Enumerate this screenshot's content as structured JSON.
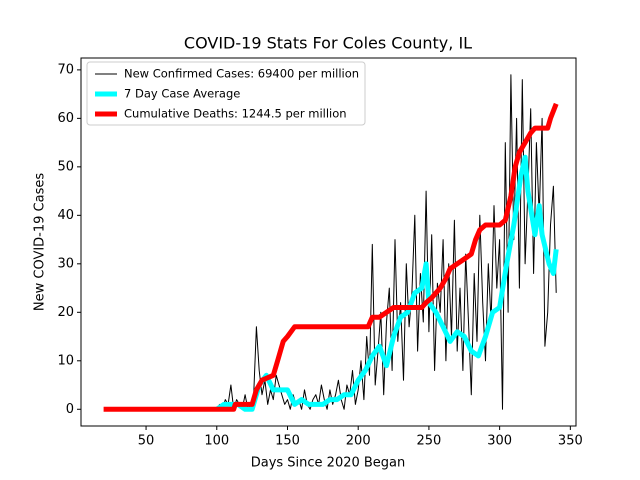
{
  "chart_data": {
    "type": "line",
    "title": "COVID-19 Stats For Coles County, IL",
    "x_label": "Days Since 2020 Began",
    "y_label": "New COVID-19 Cases",
    "xlim": [
      4,
      354
    ],
    "ylim": [
      -3.45,
      72.45
    ],
    "xticks": [
      50,
      100,
      150,
      200,
      250,
      300,
      350
    ],
    "yticks": [
      0,
      10,
      20,
      30,
      40,
      50,
      60,
      70
    ],
    "legend": "upper left",
    "series": [
      {
        "name": "New Confirmed Cases: 69400 per million",
        "color": "#000000",
        "width": 1,
        "x": [
          100,
          102,
          104,
          106,
          108,
          110,
          112,
          114,
          116,
          118,
          120,
          122,
          124,
          126,
          128,
          130,
          132,
          134,
          136,
          138,
          140,
          142,
          144,
          146,
          148,
          150,
          152,
          154,
          156,
          158,
          160,
          162,
          164,
          166,
          168,
          170,
          172,
          174,
          176,
          178,
          180,
          182,
          184,
          186,
          188,
          190,
          192,
          194,
          196,
          198,
          200,
          202,
          204,
          206,
          208,
          210,
          212,
          214,
          216,
          218,
          220,
          222,
          224,
          226,
          228,
          230,
          232,
          234,
          236,
          238,
          240,
          242,
          244,
          246,
          248,
          250,
          252,
          254,
          256,
          258,
          260,
          262,
          264,
          266,
          268,
          270,
          272,
          274,
          276,
          278,
          280,
          282,
          284,
          286,
          288,
          290,
          292,
          294,
          296,
          298,
          300,
          302,
          304,
          306,
          308,
          310,
          312,
          314,
          316,
          318,
          320,
          322,
          324,
          326,
          328,
          330,
          332,
          334,
          336,
          338,
          340
        ],
        "values": [
          0,
          1,
          0,
          2,
          1,
          5,
          0,
          2,
          1,
          0,
          3,
          0,
          1,
          2,
          17,
          8,
          3,
          6,
          1,
          4,
          2,
          7,
          5,
          3,
          1,
          2,
          0,
          3,
          1,
          2,
          0,
          4,
          1,
          0,
          2,
          3,
          1,
          5,
          2,
          0,
          4,
          1,
          3,
          6,
          2,
          0,
          5,
          3,
          8,
          1,
          4,
          10,
          2,
          15,
          7,
          34,
          5,
          12,
          20,
          3,
          18,
          25,
          8,
          35,
          14,
          22,
          6,
          30,
          17,
          24,
          40,
          12,
          28,
          18,
          45,
          16,
          36,
          8,
          26,
          20,
          35,
          10,
          30,
          15,
          39,
          12,
          25,
          8,
          32,
          18,
          3,
          28,
          14,
          40,
          22,
          10,
          30,
          18,
          42,
          25,
          35,
          0,
          55,
          20,
          69,
          35,
          60,
          25,
          68,
          30,
          45,
          62,
          28,
          55,
          40,
          60,
          13,
          20,
          38,
          46,
          24
        ]
      },
      {
        "name": "7 Day Case Average",
        "color": "#00ffff",
        "width": 5,
        "x": [
          100,
          105,
          110,
          115,
          120,
          125,
          130,
          135,
          140,
          145,
          150,
          155,
          160,
          165,
          170,
          175,
          180,
          185,
          190,
          195,
          200,
          205,
          210,
          215,
          220,
          225,
          230,
          235,
          240,
          245,
          248,
          250,
          255,
          260,
          265,
          270,
          275,
          280,
          285,
          290,
          295,
          300,
          305,
          310,
          315,
          318,
          320,
          325,
          328,
          330,
          335,
          338,
          340
        ],
        "values": [
          0,
          1,
          1,
          1,
          0,
          0,
          5,
          7,
          4,
          4,
          4,
          1,
          2,
          1,
          1,
          1,
          2,
          2,
          3,
          3,
          6,
          8,
          11,
          13,
          9,
          15,
          19,
          20,
          24,
          25,
          30,
          22,
          20,
          17,
          14,
          16,
          15,
          12,
          11,
          15,
          20,
          21,
          30,
          38,
          48,
          52,
          45,
          36,
          42,
          36,
          30,
          28,
          33
        ]
      },
      {
        "name": "Cumulative Deaths: 1244.5 per million",
        "color": "#ff0000",
        "width": 5,
        "x": [
          20,
          112,
          113,
          125,
          128,
          132,
          140,
          143,
          147,
          150,
          155,
          207,
          210,
          215,
          220,
          225,
          245,
          248,
          252,
          258,
          262,
          265,
          270,
          275,
          280,
          283,
          286,
          290,
          300,
          304,
          308,
          311,
          314,
          318,
          322,
          325,
          334,
          336,
          340
        ],
        "values": [
          0,
          0,
          1,
          1,
          4,
          6,
          7,
          10,
          14,
          15,
          17,
          17,
          19,
          19,
          20,
          21,
          21,
          22,
          23,
          25,
          27,
          29,
          30,
          31,
          32,
          35,
          37,
          38,
          38,
          39,
          44,
          50,
          53,
          55,
          57,
          58,
          58,
          60,
          63
        ]
      }
    ]
  }
}
